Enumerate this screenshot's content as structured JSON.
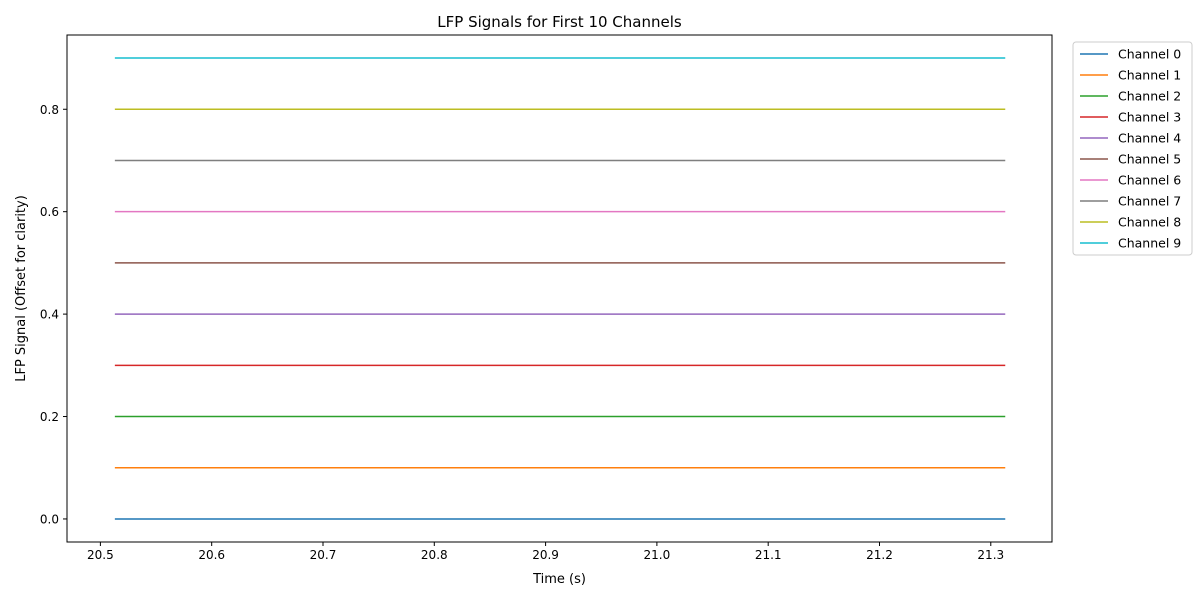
{
  "chart_data": {
    "type": "line",
    "title": "LFP Signals for First 10 Channels",
    "xlabel": "Time (s)",
    "ylabel": "LFP Signal (Offset for clarity)",
    "xlim": [
      20.47,
      21.355
    ],
    "ylim": [
      -0.045,
      0.945
    ],
    "xticks": [
      20.5,
      20.6,
      20.7,
      20.8,
      20.9,
      21.0,
      21.1,
      21.2,
      21.3
    ],
    "xtick_labels": [
      "20.5",
      "20.6",
      "20.7",
      "20.8",
      "20.9",
      "21.0",
      "21.1",
      "21.2",
      "21.3"
    ],
    "yticks": [
      0.0,
      0.2,
      0.4,
      0.6,
      0.8
    ],
    "ytick_labels": [
      "0.0",
      "0.2",
      "0.4",
      "0.6",
      "0.8"
    ],
    "grid": false,
    "legend_position": "outside-right-top",
    "x_range": [
      20.513,
      21.313
    ],
    "series": [
      {
        "name": "Channel 0",
        "color": "#1f77b4",
        "x": [
          20.513,
          21.313
        ],
        "y": [
          0.0,
          0.0
        ]
      },
      {
        "name": "Channel 1",
        "color": "#ff7f0e",
        "x": [
          20.513,
          21.313
        ],
        "y": [
          0.1,
          0.1
        ]
      },
      {
        "name": "Channel 2",
        "color": "#2ca02c",
        "x": [
          20.513,
          21.313
        ],
        "y": [
          0.2,
          0.2
        ]
      },
      {
        "name": "Channel 3",
        "color": "#d62728",
        "x": [
          20.513,
          21.313
        ],
        "y": [
          0.3,
          0.3
        ]
      },
      {
        "name": "Channel 4",
        "color": "#9467bd",
        "x": [
          20.513,
          21.313
        ],
        "y": [
          0.4,
          0.4
        ]
      },
      {
        "name": "Channel 5",
        "color": "#8c564b",
        "x": [
          20.513,
          21.313
        ],
        "y": [
          0.5,
          0.5
        ]
      },
      {
        "name": "Channel 6",
        "color": "#e377c2",
        "x": [
          20.513,
          21.313
        ],
        "y": [
          0.6,
          0.6
        ]
      },
      {
        "name": "Channel 7",
        "color": "#7f7f7f",
        "x": [
          20.513,
          21.313
        ],
        "y": [
          0.7,
          0.7
        ]
      },
      {
        "name": "Channel 8",
        "color": "#bcbd22",
        "x": [
          20.513,
          21.313
        ],
        "y": [
          0.8,
          0.8
        ]
      },
      {
        "name": "Channel 9",
        "color": "#17becf",
        "x": [
          20.513,
          21.313
        ],
        "y": [
          0.9,
          0.9
        ]
      }
    ]
  }
}
